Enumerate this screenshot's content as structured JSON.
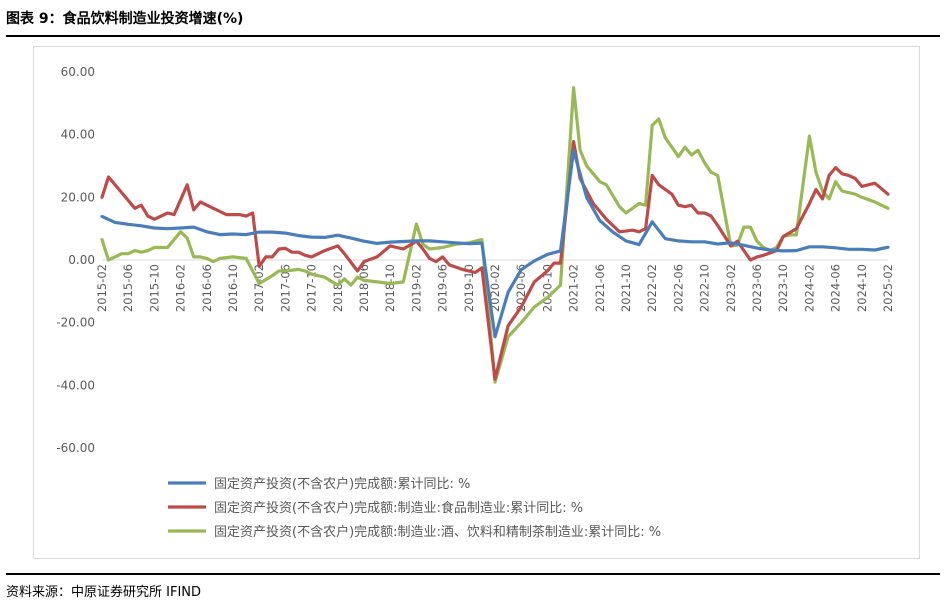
{
  "figure": {
    "title": "图表 9：食品饮料制造业投资增速(%)",
    "source": "资料来源：中原证券研究所 IFIND"
  },
  "colors": {
    "series": [
      "#4a7ebb",
      "#be4b48",
      "#98b954"
    ],
    "axis": "#d9d9d9",
    "text": "#595959"
  },
  "chart_data": {
    "type": "line",
    "title": "",
    "xlabel": "",
    "ylabel": "",
    "ylim": [
      -60,
      60
    ],
    "yticks": [
      "60.00",
      "40.00",
      "20.00",
      "0.00",
      "-20.00",
      "-40.00",
      "-60.00"
    ],
    "xlim": [
      "2015-02",
      "2025-02"
    ],
    "xticks": [
      "2015-02",
      "2015-06",
      "2015-10",
      "2016-02",
      "2016-06",
      "2016-10",
      "2017-02",
      "2017-06",
      "2017-10",
      "2018-02",
      "2018-06",
      "2018-10",
      "2019-02",
      "2019-06",
      "2019-10",
      "2020-02",
      "2020-06",
      "2020-10",
      "2021-02",
      "2021-06",
      "2021-10",
      "2022-02",
      "2022-06",
      "2022-10",
      "2023-02",
      "2023-06",
      "2023-10",
      "2024-02",
      "2024-06",
      "2024-10",
      "2025-02"
    ],
    "grid": false,
    "legend_position": "bottom",
    "series": [
      {
        "name": "固定资产投资(不含农户)完成额:累计同比: %",
        "points": [
          [
            "2015-02",
            13.9
          ],
          [
            "2015-04",
            12
          ],
          [
            "2015-06",
            11.4
          ],
          [
            "2015-08",
            10.9
          ],
          [
            "2015-10",
            10.2
          ],
          [
            "2015-12",
            10
          ],
          [
            "2016-02",
            10.2
          ],
          [
            "2016-04",
            10.5
          ],
          [
            "2016-06",
            9
          ],
          [
            "2016-08",
            8.1
          ],
          [
            "2016-10",
            8.3
          ],
          [
            "2016-12",
            8.1
          ],
          [
            "2017-02",
            8.9
          ],
          [
            "2017-04",
            8.9
          ],
          [
            "2017-06",
            8.6
          ],
          [
            "2017-08",
            7.8
          ],
          [
            "2017-10",
            7.3
          ],
          [
            "2017-12",
            7.2
          ],
          [
            "2018-02",
            7.9
          ],
          [
            "2018-04",
            7
          ],
          [
            "2018-06",
            6
          ],
          [
            "2018-08",
            5.3
          ],
          [
            "2018-10",
            5.7
          ],
          [
            "2018-12",
            5.9
          ],
          [
            "2019-02",
            6.1
          ],
          [
            "2019-04",
            6.1
          ],
          [
            "2019-06",
            5.8
          ],
          [
            "2019-08",
            5.5
          ],
          [
            "2019-10",
            5.2
          ],
          [
            "2019-12",
            5.4
          ],
          [
            "2020-02",
            -24.5
          ],
          [
            "2020-04",
            -10.3
          ],
          [
            "2020-06",
            -3.1
          ],
          [
            "2020-08",
            -0.3
          ],
          [
            "2020-10",
            1.8
          ],
          [
            "2020-12",
            2.9
          ],
          [
            "2021-02",
            35
          ],
          [
            "2021-04",
            19.9
          ],
          [
            "2021-06",
            12.6
          ],
          [
            "2021-08",
            8.9
          ],
          [
            "2021-10",
            6.1
          ],
          [
            "2021-12",
            4.9
          ],
          [
            "2022-02",
            12.2
          ],
          [
            "2022-04",
            6.8
          ],
          [
            "2022-06",
            6.1
          ],
          [
            "2022-08",
            5.8
          ],
          [
            "2022-10",
            5.8
          ],
          [
            "2022-12",
            5.1
          ],
          [
            "2023-02",
            5.5
          ],
          [
            "2023-04",
            4.7
          ],
          [
            "2023-06",
            3.8
          ],
          [
            "2023-08",
            3.2
          ],
          [
            "2023-10",
            2.9
          ],
          [
            "2023-12",
            3
          ],
          [
            "2024-02",
            4.2
          ],
          [
            "2024-04",
            4.2
          ],
          [
            "2024-06",
            3.9
          ],
          [
            "2024-08",
            3.4
          ],
          [
            "2024-10",
            3.4
          ],
          [
            "2024-12",
            3.2
          ],
          [
            "2025-02",
            4.1
          ]
        ]
      },
      {
        "name": "固定资产投资(不含农户)完成额:制造业:食品制造业:累计同比: %",
        "points": [
          [
            "2015-02",
            20
          ],
          [
            "2015-03",
            26.5
          ],
          [
            "2015-05",
            21.5
          ],
          [
            "2015-07",
            16.5
          ],
          [
            "2015-08",
            17.5
          ],
          [
            "2015-09",
            14
          ],
          [
            "2015-10",
            13
          ],
          [
            "2015-12",
            15
          ],
          [
            "2016-01",
            14.5
          ],
          [
            "2016-03",
            24
          ],
          [
            "2016-04",
            16
          ],
          [
            "2016-05",
            18.5
          ],
          [
            "2016-07",
            16.5
          ],
          [
            "2016-09",
            14.5
          ],
          [
            "2016-11",
            14.5
          ],
          [
            "2016-12",
            14
          ],
          [
            "2017-01",
            15
          ],
          [
            "2017-02",
            -2
          ],
          [
            "2017-03",
            1
          ],
          [
            "2017-04",
            1
          ],
          [
            "2017-05",
            3.5
          ],
          [
            "2017-06",
            3.7
          ],
          [
            "2017-07",
            2.5
          ],
          [
            "2017-08",
            2.5
          ],
          [
            "2017-09",
            1.5
          ],
          [
            "2017-10",
            1
          ],
          [
            "2017-12",
            3
          ],
          [
            "2018-02",
            4.5
          ],
          [
            "2018-03",
            2
          ],
          [
            "2018-05",
            -3.5
          ],
          [
            "2018-06",
            -0.5
          ],
          [
            "2018-08",
            1
          ],
          [
            "2018-10",
            4.5
          ],
          [
            "2018-12",
            3.5
          ],
          [
            "2019-02",
            6
          ],
          [
            "2019-03",
            3.5
          ],
          [
            "2019-04",
            0.5
          ],
          [
            "2019-05",
            -0.5
          ],
          [
            "2019-06",
            1
          ],
          [
            "2019-07",
            -1.5
          ],
          [
            "2019-09",
            -3
          ],
          [
            "2019-11",
            -4
          ],
          [
            "2019-12",
            -2.5
          ],
          [
            "2020-02",
            -38
          ],
          [
            "2020-04",
            -21
          ],
          [
            "2020-06",
            -15
          ],
          [
            "2020-08",
            -7
          ],
          [
            "2020-10",
            -3.5
          ],
          [
            "2020-11",
            -1
          ],
          [
            "2020-12",
            -1
          ],
          [
            "2021-02",
            37.8
          ],
          [
            "2021-03",
            26
          ],
          [
            "2021-05",
            18
          ],
          [
            "2021-07",
            13
          ],
          [
            "2021-09",
            9
          ],
          [
            "2021-11",
            9.5
          ],
          [
            "2021-12",
            9
          ],
          [
            "2022-01",
            10
          ],
          [
            "2022-02",
            27
          ],
          [
            "2022-03",
            24
          ],
          [
            "2022-05",
            21
          ],
          [
            "2022-06",
            17.5
          ],
          [
            "2022-07",
            17
          ],
          [
            "2022-08",
            17.5
          ],
          [
            "2022-09",
            15
          ],
          [
            "2022-10",
            15
          ],
          [
            "2022-11",
            14
          ],
          [
            "2022-12",
            11
          ],
          [
            "2023-02",
            4.5
          ],
          [
            "2023-03",
            6
          ],
          [
            "2023-05",
            0
          ],
          [
            "2023-06",
            1
          ],
          [
            "2023-07",
            1.5
          ],
          [
            "2023-09",
            3
          ],
          [
            "2023-10",
            7.5
          ],
          [
            "2023-12",
            10
          ],
          [
            "2024-02",
            18
          ],
          [
            "2024-03",
            22.5
          ],
          [
            "2024-04",
            19.5
          ],
          [
            "2024-05",
            27
          ],
          [
            "2024-06",
            29.5
          ],
          [
            "2024-07",
            27.5
          ],
          [
            "2024-08",
            27
          ],
          [
            "2024-09",
            26
          ],
          [
            "2024-10",
            23.5
          ],
          [
            "2024-12",
            24.5
          ],
          [
            "2025-02",
            21
          ]
        ]
      },
      {
        "name": "固定资产投资(不含农户)完成额:制造业:酒、饮料和精制茶制造业:累计同比: %",
        "points": [
          [
            "2015-02",
            6.5
          ],
          [
            "2015-03",
            0
          ],
          [
            "2015-05",
            2
          ],
          [
            "2015-06",
            2
          ],
          [
            "2015-07",
            3
          ],
          [
            "2015-08",
            2.5
          ],
          [
            "2015-09",
            3
          ],
          [
            "2015-10",
            4
          ],
          [
            "2015-12",
            4
          ],
          [
            "2016-02",
            9
          ],
          [
            "2016-03",
            7
          ],
          [
            "2016-04",
            1
          ],
          [
            "2016-05",
            1
          ],
          [
            "2016-06",
            0.5
          ],
          [
            "2016-07",
            -0.5
          ],
          [
            "2016-08",
            0.5
          ],
          [
            "2016-10",
            1
          ],
          [
            "2016-12",
            0.5
          ],
          [
            "2017-02",
            -7.5
          ],
          [
            "2017-04",
            -5
          ],
          [
            "2017-05",
            -3.5
          ],
          [
            "2017-06",
            -3.5
          ],
          [
            "2017-08",
            -3
          ],
          [
            "2017-09",
            -3.5
          ],
          [
            "2017-10",
            -4.5
          ],
          [
            "2017-11",
            -5
          ],
          [
            "2017-12",
            -5.5
          ],
          [
            "2018-02",
            -8
          ],
          [
            "2018-03",
            -6
          ],
          [
            "2018-04",
            -8
          ],
          [
            "2018-05",
            -5.5
          ],
          [
            "2018-06",
            -6.5
          ],
          [
            "2018-08",
            -7
          ],
          [
            "2018-10",
            -7.5
          ],
          [
            "2018-12",
            -7
          ],
          [
            "2019-02",
            11.5
          ],
          [
            "2019-03",
            5
          ],
          [
            "2019-04",
            3.5
          ],
          [
            "2019-06",
            4
          ],
          [
            "2019-08",
            5
          ],
          [
            "2019-10",
            5.5
          ],
          [
            "2019-12",
            6.5
          ],
          [
            "2020-02",
            -39
          ],
          [
            "2020-04",
            -24.5
          ],
          [
            "2020-06",
            -20
          ],
          [
            "2020-08",
            -15
          ],
          [
            "2020-10",
            -12
          ],
          [
            "2020-12",
            -8
          ],
          [
            "2021-02",
            55
          ],
          [
            "2021-03",
            35
          ],
          [
            "2021-04",
            30
          ],
          [
            "2021-05",
            27.5
          ],
          [
            "2021-06",
            25
          ],
          [
            "2021-07",
            24
          ],
          [
            "2021-09",
            17
          ],
          [
            "2021-10",
            15
          ],
          [
            "2021-12",
            18
          ],
          [
            "2022-01",
            17.5
          ],
          [
            "2022-02",
            43
          ],
          [
            "2022-03",
            45
          ],
          [
            "2022-04",
            39
          ],
          [
            "2022-05",
            36
          ],
          [
            "2022-06",
            33
          ],
          [
            "2022-07",
            36
          ],
          [
            "2022-08",
            33.5
          ],
          [
            "2022-09",
            35
          ],
          [
            "2022-10",
            31
          ],
          [
            "2022-11",
            28
          ],
          [
            "2022-12",
            27
          ],
          [
            "2023-02",
            4.5
          ],
          [
            "2023-03",
            4.8
          ],
          [
            "2023-04",
            10.5
          ],
          [
            "2023-05",
            10.5
          ],
          [
            "2023-06",
            6
          ],
          [
            "2023-07",
            4
          ],
          [
            "2023-08",
            3
          ],
          [
            "2023-09",
            4
          ],
          [
            "2023-10",
            7.5
          ],
          [
            "2023-11",
            8
          ],
          [
            "2023-12",
            8
          ],
          [
            "2024-02",
            39.5
          ],
          [
            "2024-03",
            28
          ],
          [
            "2024-04",
            22
          ],
          [
            "2024-05",
            19.5
          ],
          [
            "2024-06",
            25
          ],
          [
            "2024-07",
            22
          ],
          [
            "2024-09",
            21
          ],
          [
            "2024-10",
            20
          ],
          [
            "2024-12",
            18.5
          ],
          [
            "2025-02",
            16.5
          ]
        ]
      }
    ]
  }
}
